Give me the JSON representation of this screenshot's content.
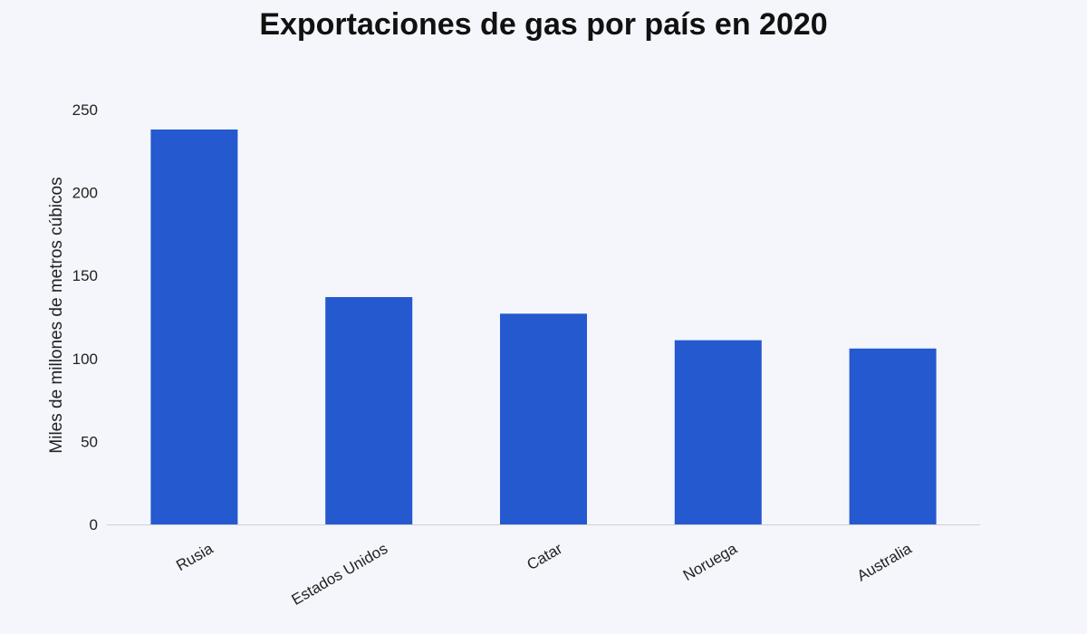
{
  "chart_data": {
    "type": "bar",
    "title": "Exportaciones de gas por país en 2020",
    "xlabel": "",
    "ylabel": "Miles de millones de metros cúbicos",
    "categories": [
      "Rusia",
      "Estados Unidos",
      "Catar",
      "Noruega",
      "Australia"
    ],
    "values": [
      238,
      137,
      127,
      111,
      106
    ],
    "ylim": [
      0,
      250
    ],
    "yticks": [
      0,
      50,
      100,
      150,
      200,
      250
    ],
    "grid": false,
    "legend": "none",
    "bar_color": "#2459cf",
    "axis_color": "#d0d0d8"
  }
}
